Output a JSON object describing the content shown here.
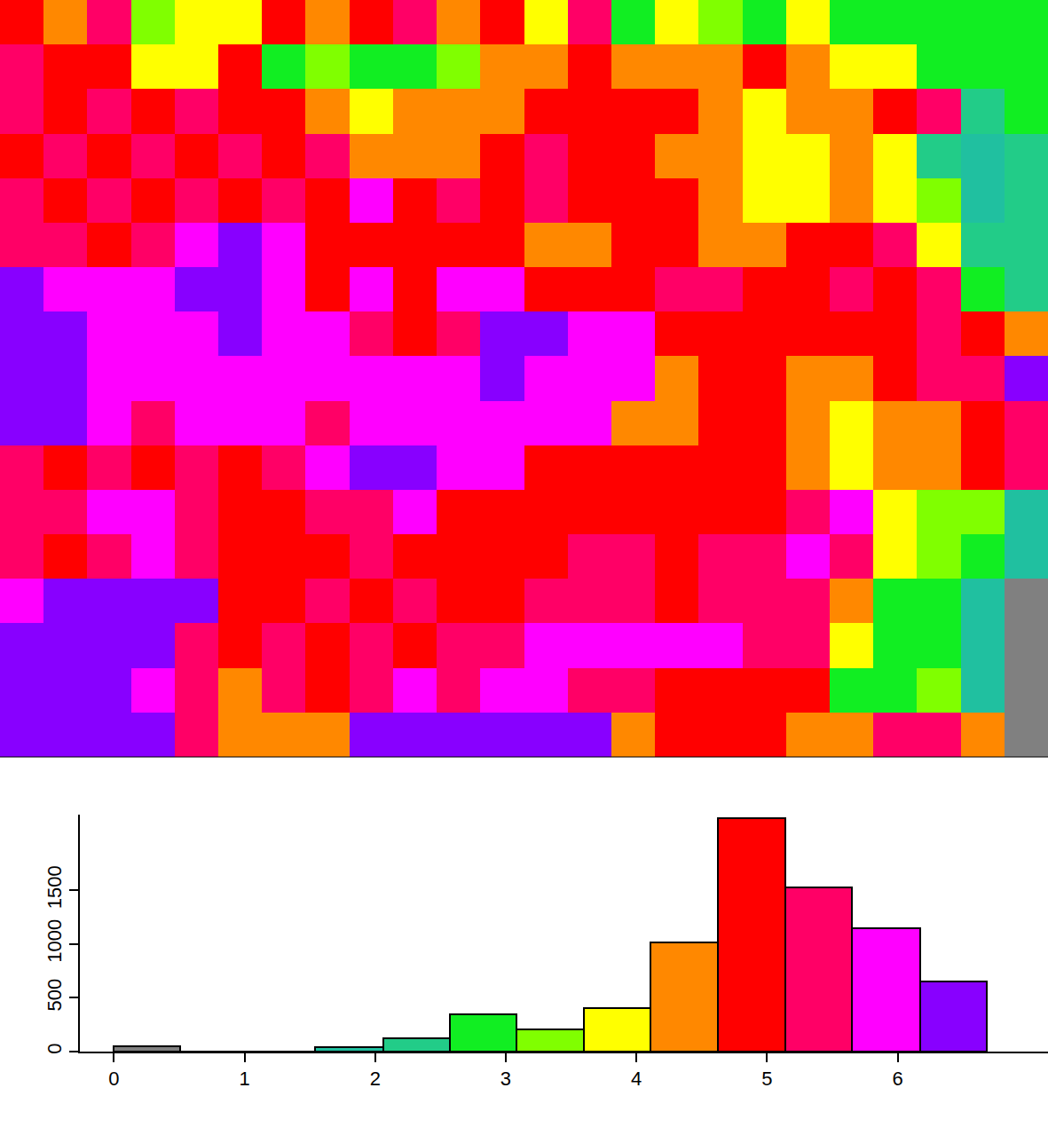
{
  "chart_data": [
    {
      "type": "heatmap",
      "tick_labels": false,
      "zlim": [
        0,
        6.68
      ],
      "breaks": [
        0,
        0.51,
        1.03,
        1.54,
        2.06,
        2.57,
        3.08,
        3.6,
        4.11,
        4.62,
        5.14,
        5.65,
        6.17,
        6.68
      ],
      "colors": [
        "#808080",
        "#1e7fc0",
        "#20a0b0",
        "#20c0a0",
        "#22cc88",
        "#11ee22",
        "#80ff00",
        "#ffff00",
        "#ff8800",
        "#ff0000",
        "#ff0066",
        "#ff00ff",
        "#8800ff"
      ],
      "cells": [
        [
          4.9,
          4.35,
          5.4,
          3.3,
          3.85,
          3.85,
          4.9,
          4.35,
          4.9,
          5.4,
          4.35,
          4.9,
          3.85,
          5.4,
          2.8,
          3.85,
          3.3,
          2.8,
          3.85,
          2.8,
          2.8,
          2.8,
          2.8,
          2.8
        ],
        [
          5.4,
          4.9,
          4.9,
          3.85,
          3.85,
          4.9,
          2.8,
          3.3,
          2.8,
          2.8,
          3.3,
          4.35,
          4.35,
          4.9,
          4.35,
          4.35,
          4.35,
          4.9,
          4.35,
          3.85,
          3.85,
          2.8,
          2.8,
          2.8
        ],
        [
          5.4,
          4.9,
          5.4,
          4.9,
          5.4,
          4.9,
          4.9,
          4.35,
          3.85,
          4.35,
          4.35,
          4.35,
          4.9,
          4.9,
          4.9,
          4.9,
          4.35,
          3.85,
          4.35,
          4.35,
          4.9,
          5.4,
          2.3,
          2.8
        ],
        [
          4.9,
          5.4,
          4.9,
          5.4,
          4.9,
          5.4,
          4.9,
          5.4,
          4.35,
          4.35,
          4.35,
          4.9,
          5.4,
          4.9,
          4.9,
          4.35,
          4.35,
          3.85,
          3.85,
          4.35,
          3.85,
          2.3,
          1.8,
          2.3
        ],
        [
          5.4,
          4.9,
          5.4,
          4.9,
          5.4,
          4.9,
          5.4,
          4.9,
          5.9,
          4.9,
          5.4,
          4.9,
          5.4,
          4.9,
          4.9,
          4.9,
          4.35,
          3.85,
          3.85,
          4.35,
          3.85,
          3.3,
          1.8,
          2.3
        ],
        [
          5.4,
          5.4,
          4.9,
          5.4,
          5.9,
          6.4,
          5.9,
          4.9,
          4.9,
          4.9,
          4.9,
          4.9,
          4.35,
          4.35,
          4.9,
          4.9,
          4.35,
          4.35,
          4.9,
          4.9,
          5.4,
          3.85,
          2.3,
          2.3
        ],
        [
          6.4,
          5.9,
          5.9,
          5.9,
          6.4,
          6.4,
          5.9,
          4.9,
          5.9,
          4.9,
          5.9,
          5.9,
          4.9,
          4.9,
          4.9,
          5.4,
          5.4,
          4.9,
          4.9,
          5.4,
          4.9,
          5.4,
          2.8,
          2.3
        ],
        [
          6.4,
          6.4,
          5.9,
          5.9,
          5.9,
          6.4,
          5.9,
          5.9,
          5.4,
          4.9,
          5.4,
          6.4,
          6.4,
          5.9,
          5.9,
          4.9,
          4.9,
          4.9,
          4.9,
          4.9,
          4.9,
          5.4,
          4.9,
          4.35
        ],
        [
          6.4,
          6.4,
          5.9,
          5.9,
          5.9,
          5.9,
          5.9,
          5.9,
          5.9,
          5.9,
          5.9,
          6.4,
          5.9,
          5.9,
          5.9,
          4.35,
          4.9,
          4.9,
          4.35,
          4.35,
          4.9,
          5.4,
          5.4,
          6.4
        ],
        [
          6.4,
          6.4,
          5.9,
          5.4,
          5.9,
          5.9,
          5.9,
          5.4,
          5.9,
          5.9,
          5.9,
          5.9,
          5.9,
          5.9,
          4.35,
          4.35,
          4.9,
          4.9,
          4.35,
          3.85,
          4.35,
          4.35,
          4.9,
          5.4
        ],
        [
          5.4,
          4.9,
          5.4,
          4.9,
          5.4,
          4.9,
          5.4,
          5.9,
          6.4,
          6.4,
          5.9,
          5.9,
          4.9,
          4.9,
          4.9,
          4.9,
          4.9,
          4.9,
          4.35,
          3.85,
          4.35,
          4.35,
          4.9,
          5.4
        ],
        [
          5.4,
          5.4,
          5.9,
          5.9,
          5.4,
          4.9,
          4.9,
          5.4,
          5.4,
          5.9,
          4.9,
          4.9,
          4.9,
          4.9,
          4.9,
          4.9,
          4.9,
          4.9,
          5.4,
          5.9,
          3.85,
          3.3,
          3.3,
          1.8
        ],
        [
          5.4,
          4.9,
          5.4,
          5.9,
          5.4,
          4.9,
          4.9,
          4.9,
          5.4,
          4.9,
          4.9,
          4.9,
          4.9,
          5.4,
          5.4,
          4.9,
          5.4,
          5.4,
          5.9,
          5.4,
          3.85,
          3.3,
          2.8,
          1.8
        ],
        [
          5.9,
          6.4,
          6.4,
          6.4,
          6.4,
          4.9,
          4.9,
          5.4,
          4.9,
          5.4,
          4.9,
          4.9,
          5.4,
          5.4,
          5.4,
          4.9,
          5.4,
          5.4,
          5.4,
          4.35,
          2.8,
          2.8,
          1.8,
          0.25
        ],
        [
          6.4,
          6.4,
          6.4,
          6.4,
          5.4,
          4.9,
          5.4,
          4.9,
          5.4,
          4.9,
          5.4,
          5.4,
          5.9,
          5.9,
          5.9,
          5.9,
          5.9,
          5.4,
          5.4,
          3.85,
          2.8,
          2.8,
          1.8,
          0.25
        ],
        [
          6.4,
          6.4,
          6.4,
          5.9,
          5.4,
          4.35,
          5.4,
          4.9,
          5.4,
          5.9,
          5.4,
          5.9,
          5.9,
          5.4,
          5.4,
          4.9,
          4.9,
          4.9,
          4.9,
          2.8,
          2.8,
          3.3,
          1.8,
          0.25
        ],
        [
          6.4,
          6.4,
          6.4,
          6.4,
          5.4,
          4.35,
          4.35,
          4.35,
          6.4,
          6.4,
          6.4,
          6.4,
          6.4,
          6.4,
          4.35,
          4.9,
          4.9,
          4.9,
          4.35,
          4.35,
          5.4,
          5.4,
          4.35,
          0.25
        ]
      ]
    },
    {
      "type": "histogram",
      "bins": [
        0,
        0.51,
        1.03,
        1.54,
        2.06,
        2.57,
        3.08,
        3.6,
        4.11,
        4.62,
        5.14,
        5.65,
        6.17,
        6.68
      ],
      "values": [
        50,
        0,
        0,
        40,
        120,
        350,
        205,
        405,
        1015,
        2170,
        1525,
        1145,
        650
      ],
      "colors": [
        "#808080",
        "#1e7fc0",
        "#20a0b0",
        "#20c0a0",
        "#22cc88",
        "#11ee22",
        "#80ff00",
        "#ffff00",
        "#ff8800",
        "#ff0000",
        "#ff0066",
        "#ff00ff",
        "#8800ff"
      ],
      "xlim": [
        -0.26,
        7.15
      ],
      "xticks": [
        0,
        1,
        2,
        3,
        4,
        5,
        6
      ],
      "ylim": [
        0,
        2200
      ],
      "yticks": [
        0,
        500,
        1000,
        1500
      ],
      "grid": false
    }
  ]
}
